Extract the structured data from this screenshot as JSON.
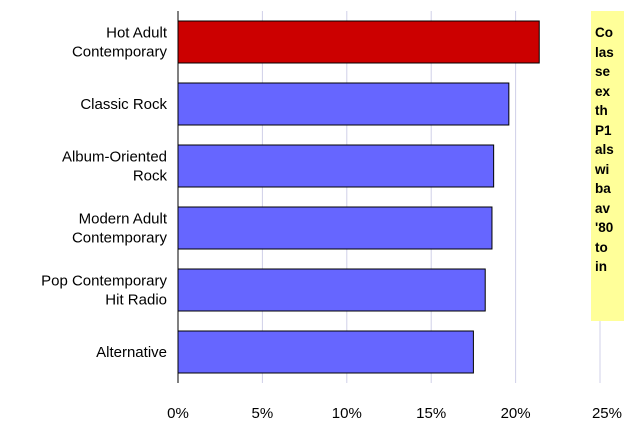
{
  "chart_data": {
    "type": "bar",
    "orientation": "horizontal",
    "categories": [
      "Hot Adult Contemporary",
      "Classic Rock",
      "Album-Oriented Rock",
      "Modern Adult Contemporary",
      "Pop Contemporary Hit Radio",
      "Alternative"
    ],
    "category_label_lines": [
      [
        "Hot Adult",
        "Contemporary"
      ],
      [
        "Classic Rock"
      ],
      [
        "Album-Oriented",
        "Rock"
      ],
      [
        "Modern Adult",
        "Contemporary"
      ],
      [
        "Pop Contemporary",
        "Hit Radio"
      ],
      [
        "Alternative"
      ]
    ],
    "values": [
      21.4,
      19.6,
      18.7,
      18.6,
      18.2,
      17.5
    ],
    "value_unit": "%",
    "highlight_index": 0,
    "xlim": [
      0,
      25
    ],
    "xticks": [
      "0%",
      "5%",
      "10%",
      "15%",
      "20%",
      "25%"
    ],
    "grid": "vertical",
    "colors": {
      "bar": "#6666ff",
      "highlight": "#cc0000",
      "bar_edge": "#000000",
      "grid": "#d0d0e8"
    },
    "title": "",
    "xlabel": "",
    "ylabel": ""
  },
  "annotation": {
    "lines": [
      "Co",
      "las",
      "se",
      "ex",
      "th",
      "P1",
      "als",
      "wi",
      "ba",
      "av",
      "'80",
      "to",
      "in"
    ],
    "background": "#ffff99"
  }
}
